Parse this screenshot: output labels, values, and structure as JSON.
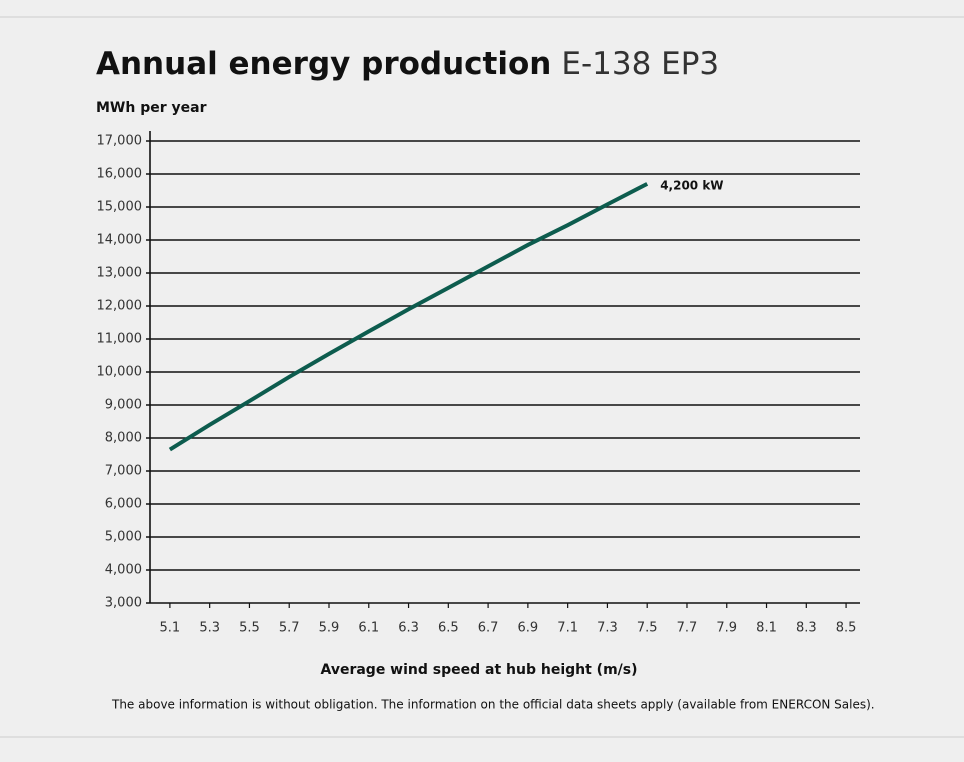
{
  "chart_data": {
    "type": "line",
    "title": "Annual energy production",
    "subtitle": "E-138 EP3",
    "y_label": "MWh per year",
    "x_label": "Average wind speed at hub height (m/s)",
    "footnote": "The above information is without obligation. The information on the official data sheets apply (available from ENERCON Sales).",
    "x": [
      5.1,
      5.3,
      5.5,
      5.7,
      5.9,
      6.1,
      6.3,
      6.5,
      6.7,
      6.9,
      7.1,
      7.3,
      7.5
    ],
    "series": [
      {
        "name": "4,200 kW",
        "color": "#0d5c4e",
        "values": [
          7650,
          8400,
          9120,
          9850,
          10550,
          11230,
          11900,
          12550,
          13200,
          13850,
          14450,
          15080,
          15700
        ]
      }
    ],
    "xlim": [
      5.0,
      8.57
    ],
    "xticks": [
      5.1,
      5.3,
      5.5,
      5.7,
      5.9,
      6.1,
      6.3,
      6.5,
      6.7,
      6.9,
      7.1,
      7.3,
      7.5,
      7.7,
      7.9,
      8.1,
      8.3,
      8.5
    ],
    "ylim": [
      3000,
      17000
    ],
    "yticks": [
      {
        "value": 3000,
        "label": "3,000"
      },
      {
        "value": 4000,
        "label": "4,000"
      },
      {
        "value": 5000,
        "label": "5,000"
      },
      {
        "value": 6000,
        "label": "6,000"
      },
      {
        "value": 7000,
        "label": "7,000"
      },
      {
        "value": 8000,
        "label": "8,000"
      },
      {
        "value": 9000,
        "label": "9,000"
      },
      {
        "value": 10000,
        "label": "10,000"
      },
      {
        "value": 11000,
        "label": "11,000"
      },
      {
        "value": 12000,
        "label": "12,000"
      },
      {
        "value": 13000,
        "label": "13,000"
      },
      {
        "value": 14000,
        "label": "14,000"
      },
      {
        "value": 15000,
        "label": "15,000"
      },
      {
        "value": 16000,
        "label": "16,000"
      },
      {
        "value": 17000,
        "label": "17,000"
      }
    ],
    "grid": true
  }
}
